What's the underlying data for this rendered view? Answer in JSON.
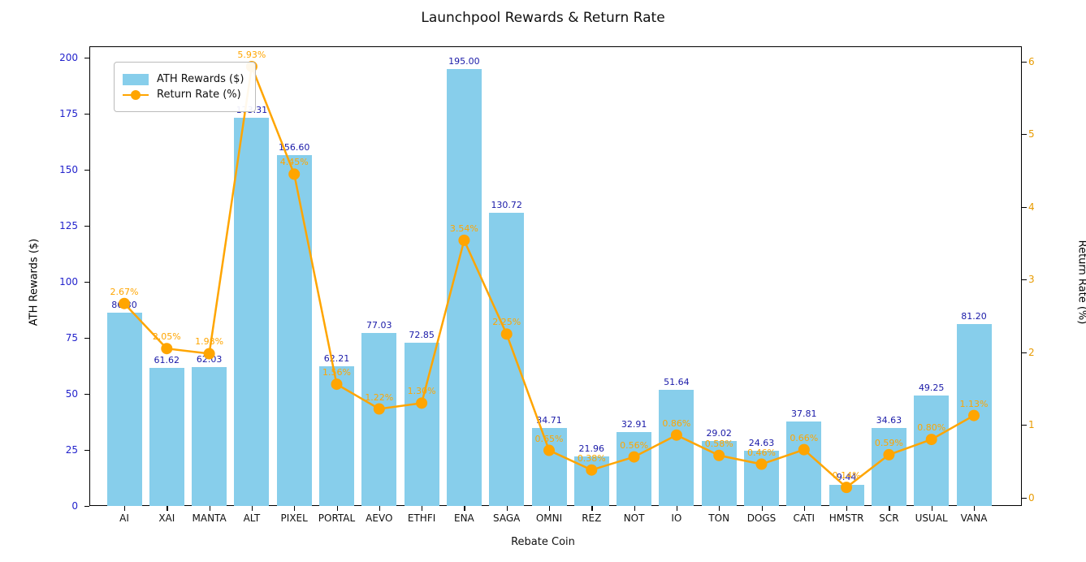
{
  "title": "Launchpool Rewards & Return Rate",
  "chart_data": {
    "type": "bar",
    "title": "Launchpool Rewards & Return Rate",
    "xlabel": "Rebate Coin",
    "ylabel_left": "ATH Rewards ($)",
    "ylabel_right": "Return Rate (%)",
    "legend_position": "upper left",
    "grid": false,
    "categories": [
      "AI",
      "XAI",
      "MANTA",
      "ALT",
      "PIXEL",
      "PORTAL",
      "AEVO",
      "ETHFI",
      "ENA",
      "SAGA",
      "OMNI",
      "REZ",
      "NOT",
      "IO",
      "TON",
      "DOGS",
      "CATI",
      "HMSTR",
      "SCR",
      "USUAL",
      "VANA"
    ],
    "series": [
      {
        "name": "ATH Rewards ($)",
        "type": "bar",
        "axis": "left",
        "color": "#87CEEB",
        "values": [
          86.3,
          61.62,
          62.03,
          173.31,
          156.6,
          62.21,
          77.03,
          72.85,
          195.0,
          130.72,
          34.71,
          21.96,
          32.91,
          51.64,
          29.02,
          24.63,
          37.81,
          9.44,
          34.63,
          49.25,
          81.2
        ]
      },
      {
        "name": "Return Rate (%)",
        "type": "line",
        "axis": "right",
        "color": "#FFA500",
        "values": [
          2.67,
          2.05,
          1.98,
          5.93,
          4.45,
          1.56,
          1.22,
          1.3,
          3.54,
          2.25,
          0.65,
          0.38,
          0.56,
          0.86,
          0.58,
          0.46,
          0.66,
          0.14,
          0.59,
          0.8,
          1.13
        ]
      }
    ],
    "left_axis": {
      "ticks": [
        0,
        25,
        50,
        75,
        100,
        125,
        150,
        175,
        200
      ],
      "min": 0,
      "max": 205
    },
    "right_axis": {
      "ticks": [
        0,
        1,
        2,
        3,
        4,
        5,
        6
      ],
      "min": -0.1,
      "max": 6.2
    },
    "colors": {
      "bar": "#87CEEB",
      "line": "#FFA500",
      "bar_value_label": "#1a1aa8",
      "left_tick_label": "#2222cc",
      "right_tick_label": "#e89b00",
      "pct_label": "#FFA500",
      "axis_title_left": "#2222cc",
      "axis_title_right": "#e89b00"
    }
  }
}
